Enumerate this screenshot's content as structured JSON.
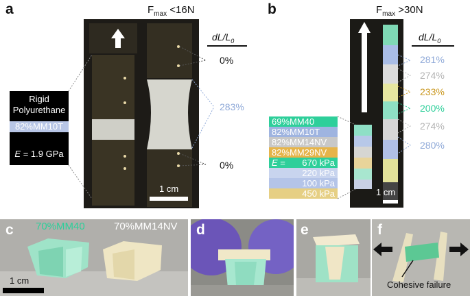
{
  "panels": {
    "a": {
      "letter": "a",
      "fmax_main": "F",
      "fmax_sub": "max",
      "fmax_rest": " <16N",
      "dl_main": "dL/L",
      "dl_sub": "0",
      "values": [
        "0%",
        "283%",
        "0%"
      ],
      "legend": {
        "line1": "Rigid",
        "line2": "Polyurethane",
        "material": "82%MM10T",
        "modulus_sym": "E",
        "modulus_val": " = 1.9 GPa"
      },
      "scale": "1 cm"
    },
    "b": {
      "letter": "b",
      "fmax_main": "F",
      "fmax_sub": "max",
      "fmax_rest": " >30N",
      "dl_main": "dL/L",
      "dl_sub": "0",
      "values": [
        "281%",
        "274%",
        "233%",
        "200%",
        "274%",
        "280%"
      ],
      "legend": {
        "m1": "69%MM40",
        "m2": "82%MM10T",
        "m3": "82%MM14NV",
        "m4": "82%MM29NV",
        "e_sym": "E",
        "e_eq": " =",
        "e1": "670 kPa",
        "e2": "220 kPa",
        "e3": "100 kPa",
        "e4": "450 kPa"
      },
      "scale": "1 cm"
    },
    "c": {
      "letter": "c",
      "label1": "70%MM40",
      "label2": "70%MM14NV",
      "scale": "1 cm"
    },
    "d": {
      "letter": "d"
    },
    "e": {
      "letter": "e"
    },
    "f": {
      "letter": "f",
      "annotation": "Cohesive failure"
    }
  },
  "colors": {
    "mm40": "#2ecf9a",
    "mm10t": "#9fb4e0",
    "mm14nv": "#c8c8c8",
    "mm29nv": "#e6b44a",
    "pct_blue": "#8fa9d8",
    "pct_gray": "#b4b4b4",
    "pct_gold": "#c9971e",
    "pct_green": "#2ecf9a"
  }
}
